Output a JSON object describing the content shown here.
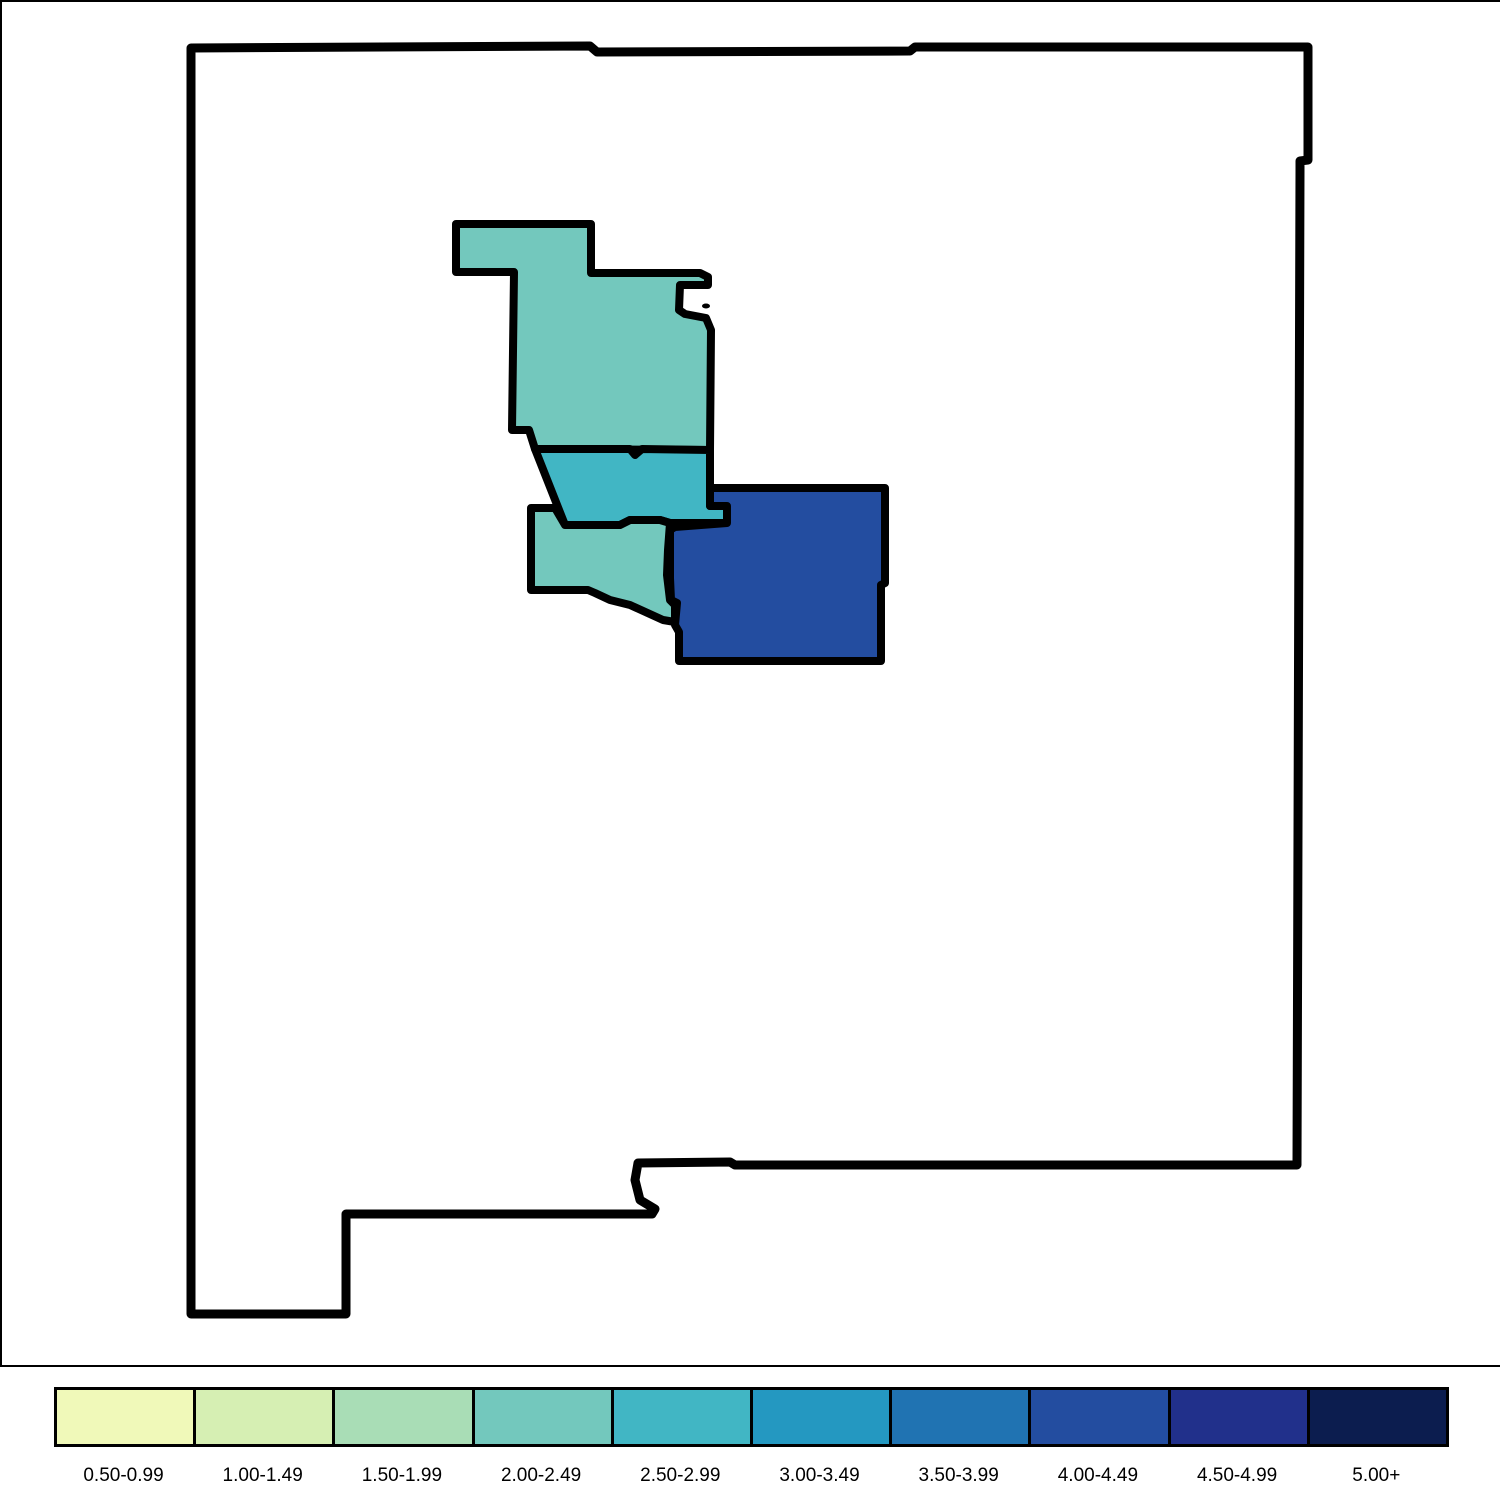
{
  "map": {
    "regions": [
      {
        "id": "state-outline",
        "fill": "#ffffff"
      },
      {
        "id": "county-north",
        "fill": "#73c8bd"
      },
      {
        "id": "county-middle",
        "fill": "#41b6c4"
      },
      {
        "id": "county-southwest",
        "fill": "#73c8bd"
      },
      {
        "id": "county-east",
        "fill": "#234da0"
      }
    ]
  },
  "legend": {
    "items": [
      {
        "label": "0.50-0.99",
        "color": "#f0f9b9"
      },
      {
        "label": "1.00-1.49",
        "color": "#d6efb3"
      },
      {
        "label": "1.50-1.99",
        "color": "#a9ddb6"
      },
      {
        "label": "2.00-2.49",
        "color": "#73c8bd"
      },
      {
        "label": "2.50-2.99",
        "color": "#41b6c4"
      },
      {
        "label": "3.00-3.49",
        "color": "#2498c1"
      },
      {
        "label": "3.50-3.99",
        "color": "#2073b2"
      },
      {
        "label": "4.00-4.49",
        "color": "#234da0"
      },
      {
        "label": "4.50-4.99",
        "color": "#21308b"
      },
      {
        "label": "5.00+",
        "color": "#0c1d4f"
      }
    ]
  }
}
